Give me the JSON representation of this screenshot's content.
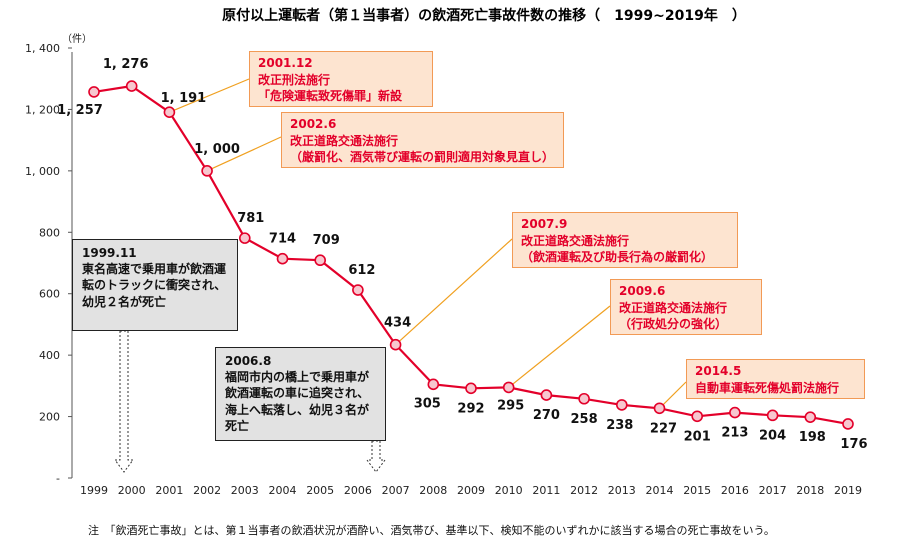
{
  "title": "原付以上運転者（第１当事者）の飲酒死亡事故件数の推移（　1999~2019年　）",
  "note": "注　「飲酒死亡事故」とは、第１当事者の飲酒状況が酒酔い、酒気帯び、基準以下、検知不能のいずれかに該当する場合の死亡事故をいう。",
  "colors": {
    "line": "#e3002a",
    "marker_fill": "#f7c7cf",
    "callout_border": "#f29a55",
    "callout_bg": "#fde4d0",
    "leader": "#f0a020"
  },
  "chart_data": {
    "type": "line",
    "unit_label": "（件）",
    "x": [
      "1999",
      "2000",
      "2001",
      "2002",
      "2003",
      "2004",
      "2005",
      "2006",
      "2007",
      "2008",
      "2009",
      "2010",
      "2011",
      "2012",
      "2013",
      "2014",
      "2015",
      "2016",
      "2017",
      "2018",
      "2019"
    ],
    "series": [
      {
        "values": [
          1257,
          1276,
          1191,
          1000,
          781,
          714,
          709,
          612,
          434,
          305,
          292,
          295,
          270,
          258,
          238,
          227,
          201,
          213,
          204,
          198,
          176
        ]
      }
    ],
    "data_labels": [
      "1, 257",
      "1, 276",
      "1, 191",
      "1, 000",
      "781",
      "714",
      "709",
      "612",
      "434",
      "305",
      "292",
      "295",
      "270",
      "258",
      "238",
      "227",
      "201",
      "213",
      "204",
      "198",
      "176"
    ],
    "y_ticks": [
      {
        "value": 1400,
        "label": "1, 400"
      },
      {
        "value": 1200,
        "label": "1, 200"
      },
      {
        "value": 1000,
        "label": "1, 000"
      },
      {
        "value": 800,
        "label": "800"
      },
      {
        "value": 600,
        "label": "600"
      },
      {
        "value": 400,
        "label": "400"
      },
      {
        "value": 200,
        "label": "200"
      },
      {
        "value": 0,
        "label": "-"
      }
    ],
    "ylim": [
      0,
      1400
    ],
    "grid": false,
    "annotations": {
      "legal": [
        {
          "year": "2001",
          "lines": [
            "2001.12",
            "改正刑法施行",
            "「危険運転致死傷罪」新設"
          ]
        },
        {
          "year": "2002",
          "lines": [
            "2002.6",
            "改正道路交通法施行",
            "（厳罰化、酒気帯び運転の罰則適用対象見直し）"
          ]
        },
        {
          "year": "2007",
          "lines": [
            "2007.9",
            "改正道路交通法施行",
            "（飲酒運転及び助長行為の厳罰化）"
          ]
        },
        {
          "year": "2010",
          "lines": [
            "2009.6",
            "改正道路交通法施行",
            "（行政処分の強化）"
          ]
        },
        {
          "year": "2014",
          "lines": [
            "2014.5",
            "自動車運転死傷処罰法施行"
          ]
        }
      ],
      "incidents": [
        {
          "year": "2000",
          "lines": [
            "1999.11",
            "東名高速で乗用車が飲酒運",
            "転のトラックに衝突され、",
            "幼児２名が死亡"
          ]
        },
        {
          "year": "2006",
          "lines": [
            "2006.8",
            "福岡市内の橋上で乗用車が",
            "飲酒運転の車に追突され、",
            "海上へ転落し、幼児３名が",
            "死亡"
          ]
        }
      ]
    }
  }
}
